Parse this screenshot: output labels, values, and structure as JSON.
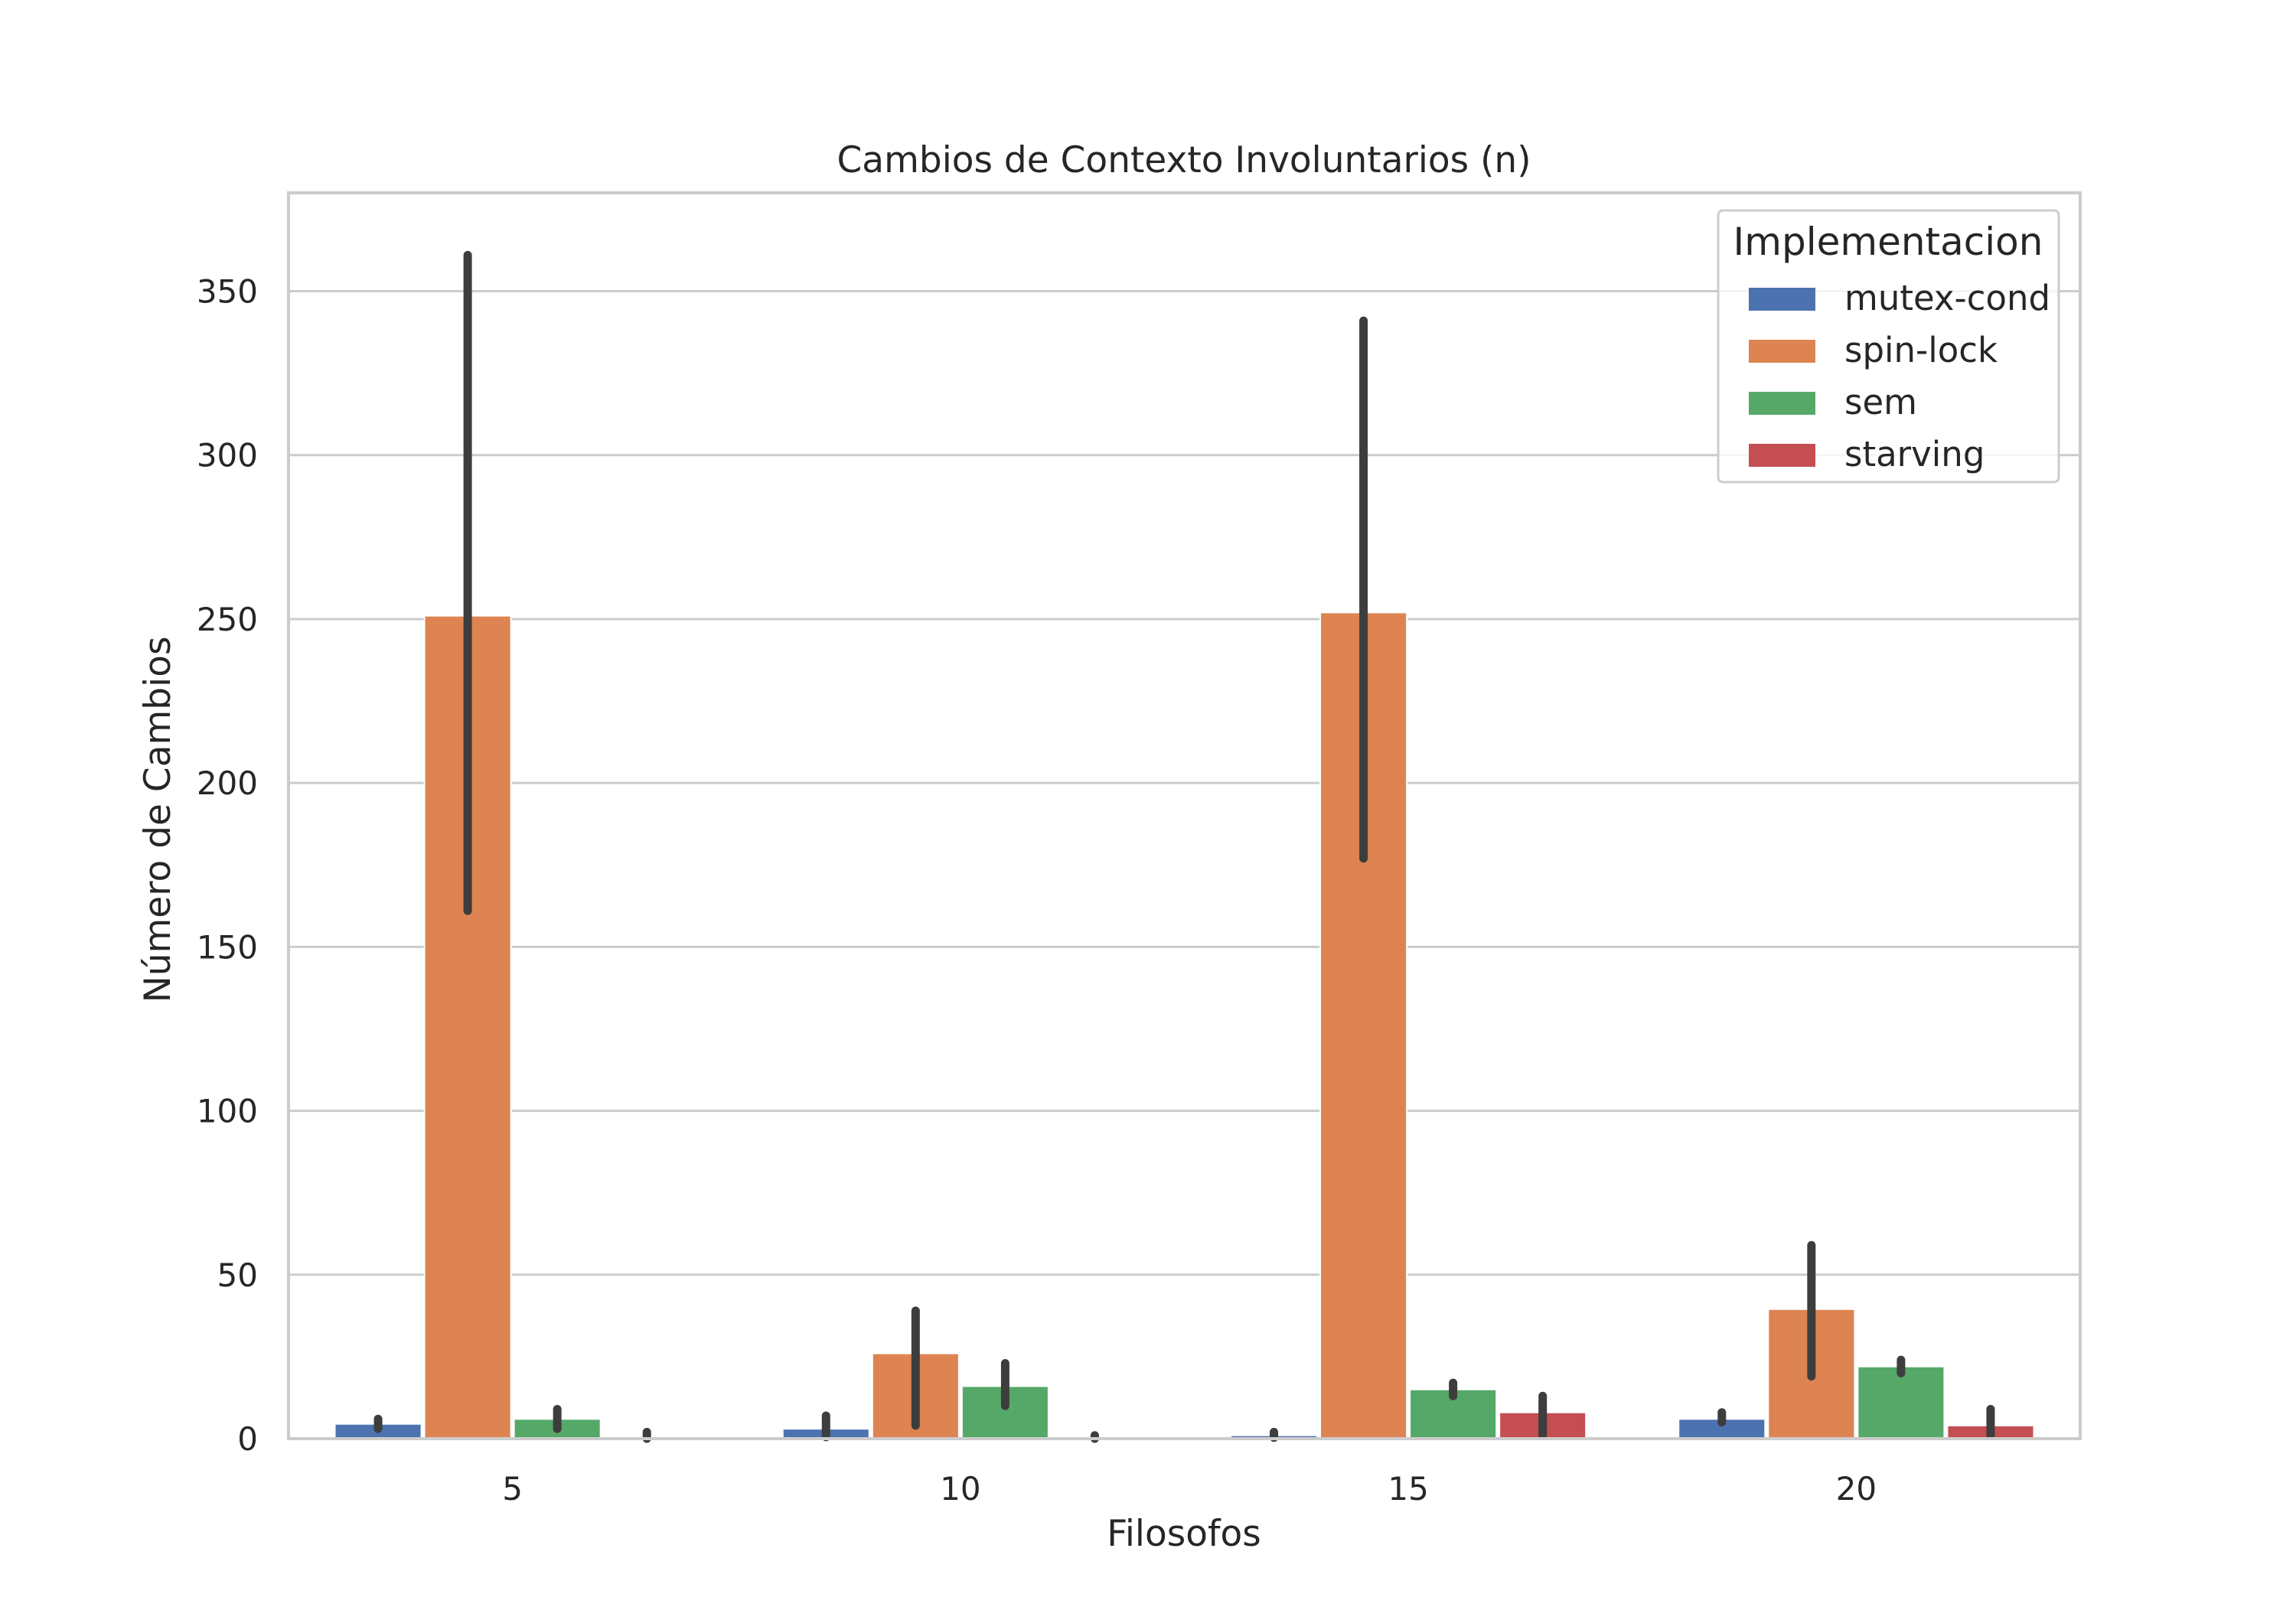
{
  "chart_data": {
    "type": "bar",
    "title": "Cambios de Contexto Involuntarios (n)",
    "xlabel": "Filosofos",
    "ylabel": "Número de Cambios",
    "categories": [
      "5",
      "10",
      "15",
      "20"
    ],
    "ylim": [
      0,
      380
    ],
    "yticks": [
      0,
      50,
      100,
      150,
      200,
      250,
      300,
      350
    ],
    "grid": true,
    "legend": {
      "title": "Implementacion",
      "placement": "top-right"
    },
    "series": [
      {
        "name": "mutex-cond",
        "color": "#4c72b0",
        "values": [
          4.5,
          3,
          1,
          6
        ],
        "ci": [
          [
            3,
            6
          ],
          [
            0.5,
            7
          ],
          [
            0.3,
            2
          ],
          [
            5,
            8
          ]
        ]
      },
      {
        "name": "spin-lock",
        "color": "#dd8452",
        "values": [
          251,
          26,
          252,
          39.5
        ],
        "ci": [
          [
            161,
            361
          ],
          [
            4,
            39
          ],
          [
            177,
            341
          ],
          [
            19,
            59
          ]
        ]
      },
      {
        "name": "sem",
        "color": "#55a868",
        "values": [
          6,
          16,
          15,
          22
        ],
        "ci": [
          [
            3,
            9
          ],
          [
            10,
            23
          ],
          [
            13,
            17
          ],
          [
            20,
            24
          ]
        ]
      },
      {
        "name": "starving",
        "color": "#c44e52",
        "values": [
          0.2,
          0.2,
          8,
          4
        ],
        "ci": [
          [
            0,
            2
          ],
          [
            0,
            1
          ],
          [
            1,
            13
          ],
          [
            1,
            9
          ]
        ]
      }
    ]
  }
}
